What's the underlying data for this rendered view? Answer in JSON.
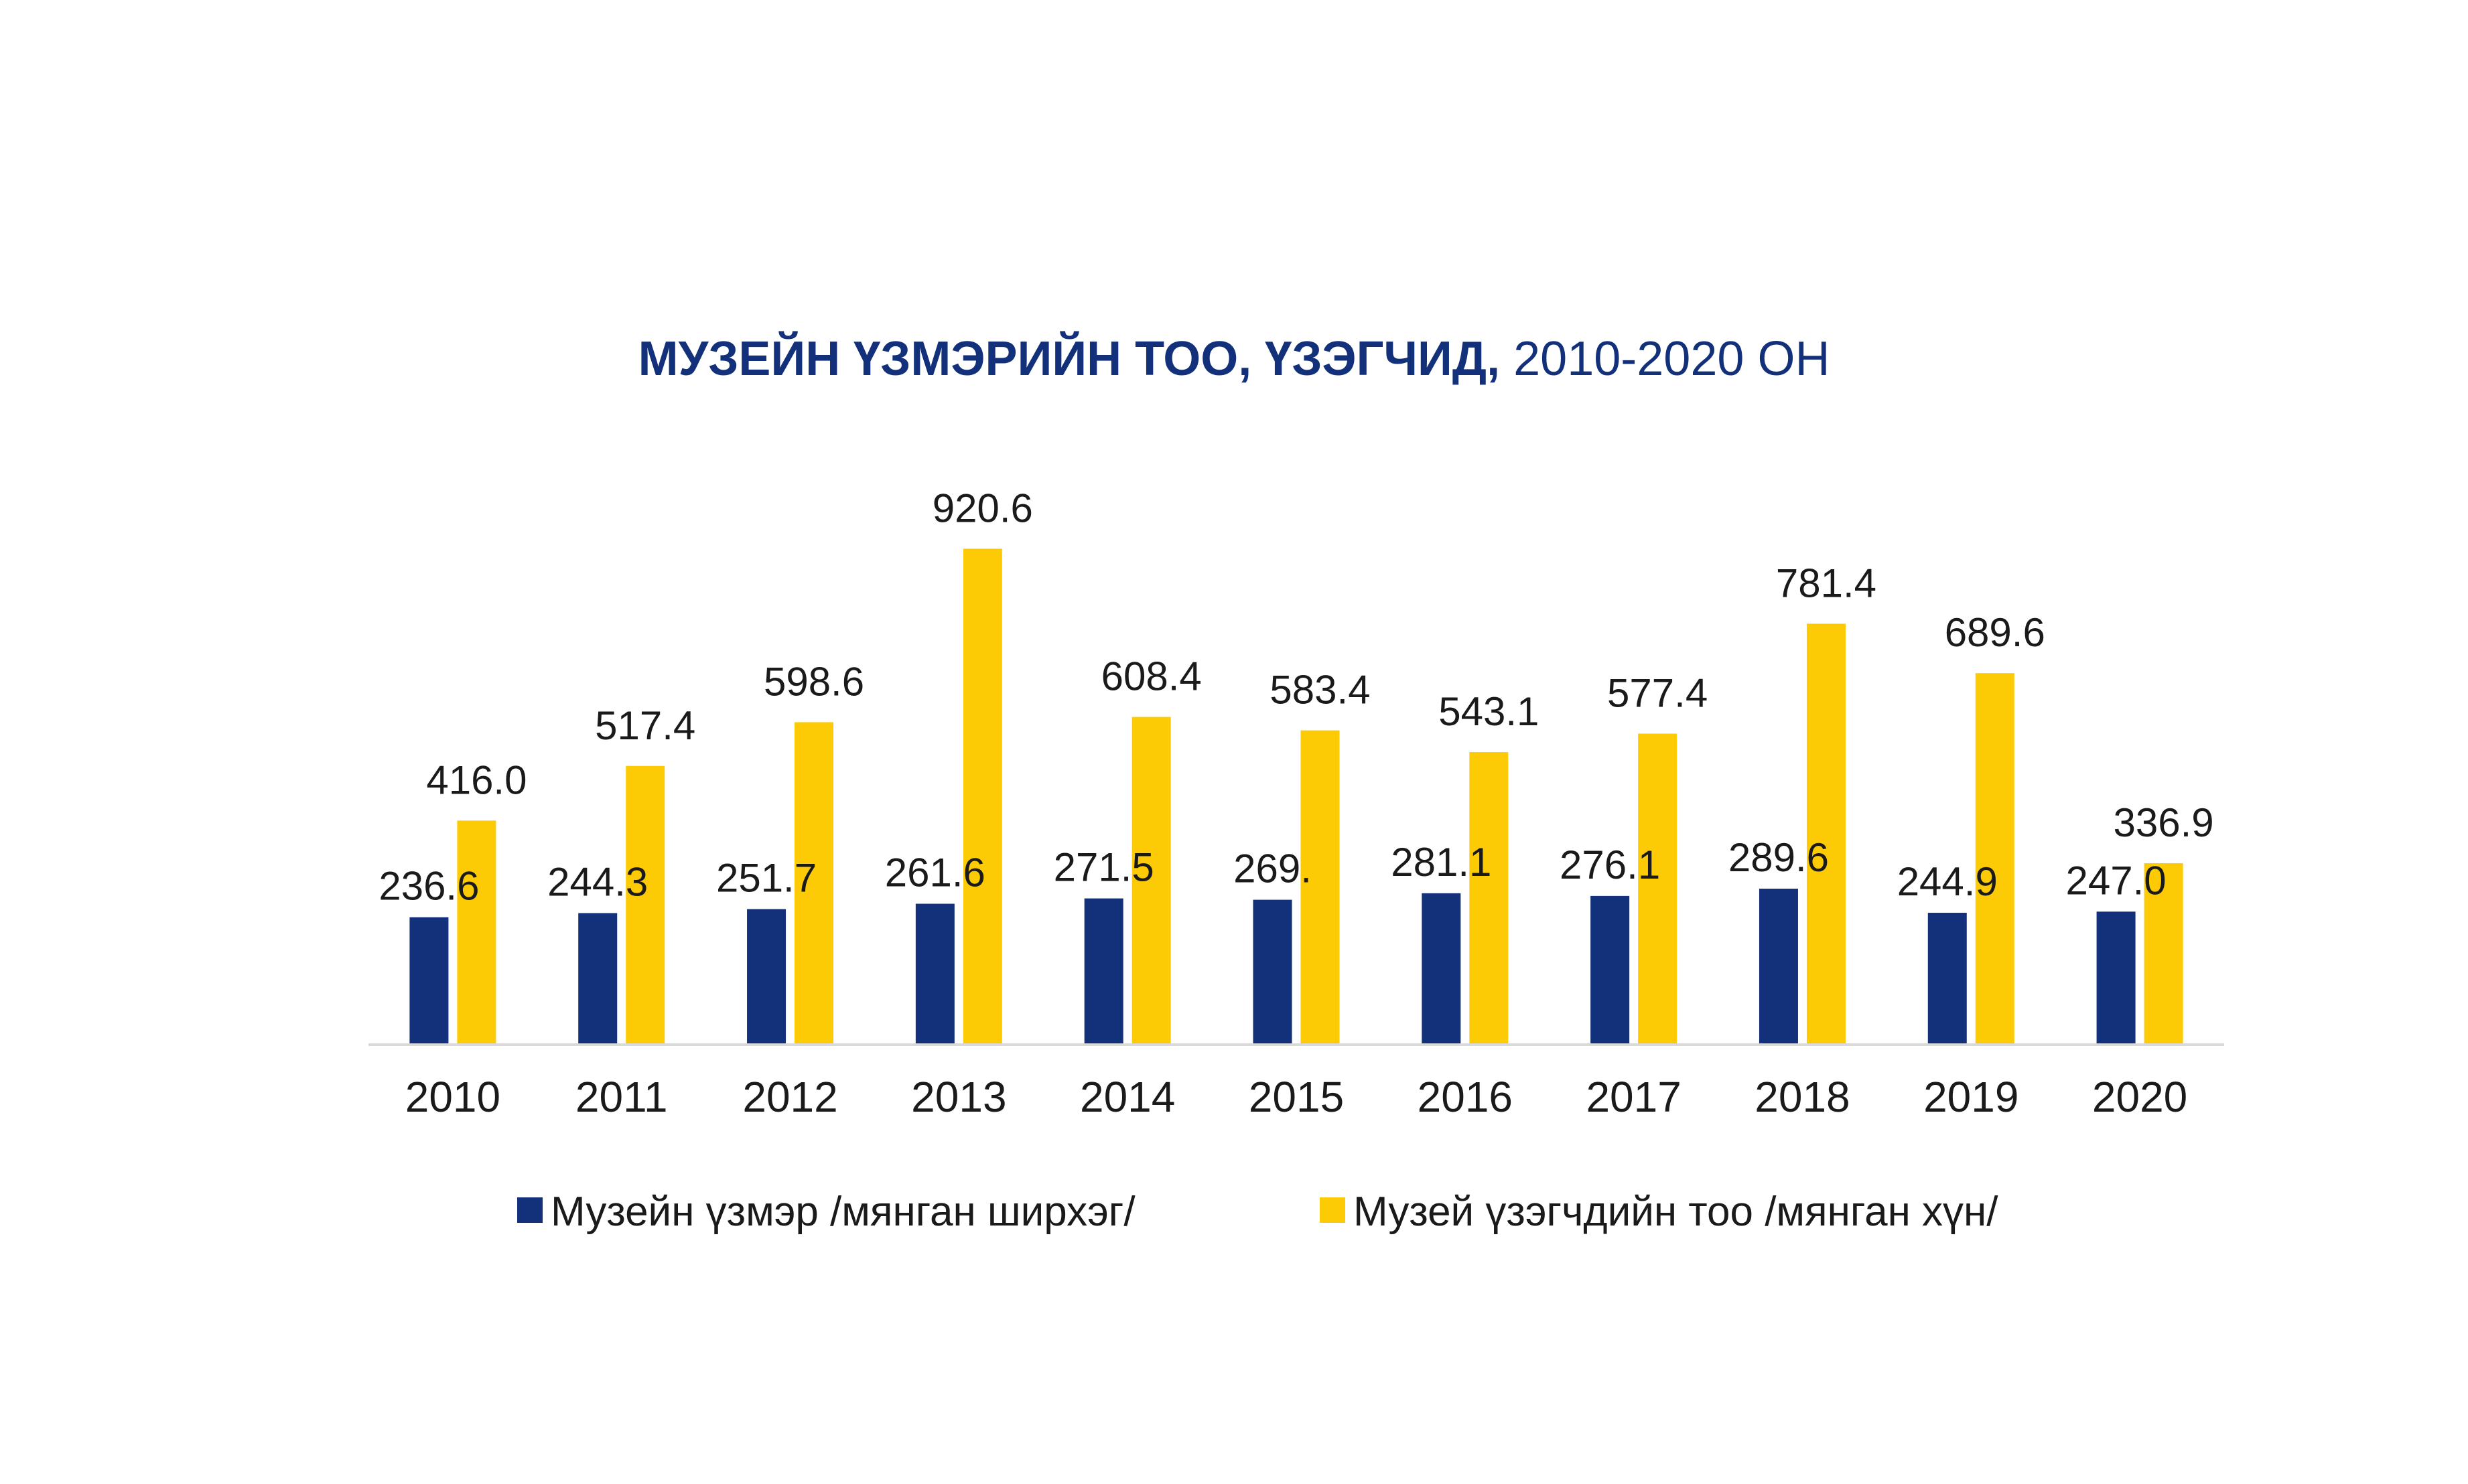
{
  "chart_data": {
    "type": "bar",
    "title_bold": "МУЗЕЙН ҮЗМЭРИЙН ТОО, ҮЗЭГЧИД,",
    "title_rest": " 2010-2020 ОН",
    "categories": [
      "2010",
      "2011",
      "2012",
      "2013",
      "2014",
      "2015",
      "2016",
      "2017",
      "2018",
      "2019",
      "2020"
    ],
    "series": [
      {
        "name": "Музейн үзмэр /мянган ширхэг/",
        "color": "#13307a",
        "values": [
          236.6,
          244.3,
          251.7,
          261.6,
          271.5,
          269.0,
          281.1,
          276.1,
          289.6,
          244.9,
          247.0
        ],
        "labels": [
          "236.6",
          "244.3",
          "251.7",
          "261.6",
          "271.5",
          "269.",
          "281.1",
          "276.1",
          "289.6",
          "244.9",
          "247.0"
        ]
      },
      {
        "name": "Музей үзэгчдийн тоо /мянган хүн/",
        "color": "#fdcb05",
        "values": [
          416.0,
          517.4,
          598.6,
          920.6,
          608.4,
          583.4,
          543.1,
          577.4,
          781.4,
          689.6,
          336.9
        ],
        "labels": [
          "416.0",
          "517.4",
          "598.6",
          "920.6",
          "608.4",
          "583.4",
          "543.1",
          "577.4",
          "781.4",
          "689.6",
          "336.9"
        ]
      }
    ],
    "ylim": [
      0,
      1000
    ],
    "grid": false,
    "legend_position": "bottom",
    "title_color": "#13307a",
    "axis_color": "#d9d9d9",
    "text_color": "#1a1a1a"
  }
}
